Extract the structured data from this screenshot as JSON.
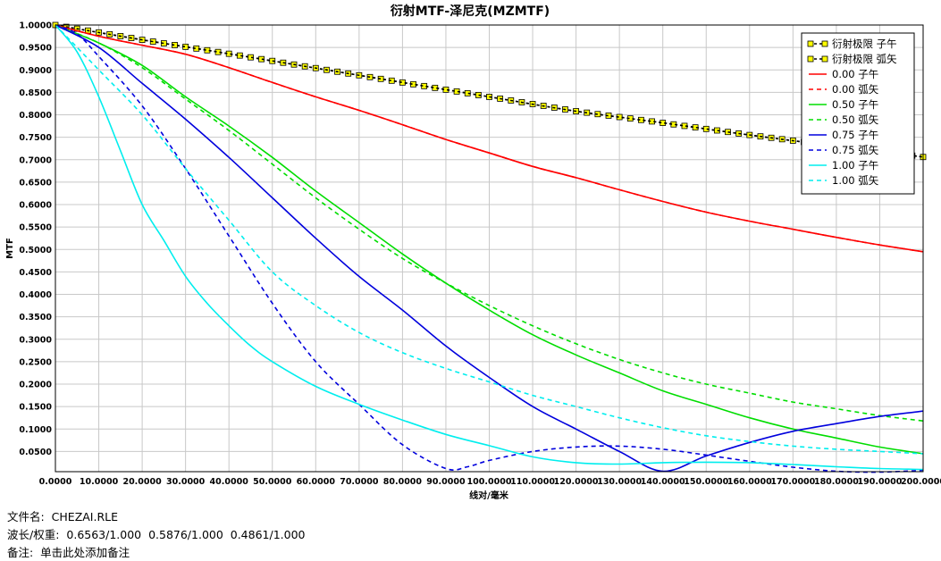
{
  "chart_data": {
    "type": "line",
    "title": "衍射MTF-泽尼克(MZMTF)",
    "xlabel": "线对/毫米",
    "ylabel": "MTF",
    "xlim": [
      0,
      200
    ],
    "ylim": [
      0.005,
      1.0
    ],
    "grid": true,
    "legend_position": "top-right",
    "x_ticks": [
      0,
      10,
      20,
      30,
      40,
      50,
      60,
      70,
      80,
      90,
      100,
      110,
      120,
      130,
      140,
      150,
      160,
      170,
      180,
      190,
      200
    ],
    "x_tick_labels": [
      "0.0000",
      "10.0000",
      "20.0000",
      "30.0000",
      "40.0000",
      "50.0000",
      "60.0000",
      "70.0000",
      "80.0000",
      "90.0000",
      "100.0000",
      "110.0000",
      "120.0000",
      "130.0000",
      "140.0000",
      "150.0000",
      "160.0000",
      "170.0000",
      "180.0000",
      "190.0000",
      "200.0000"
    ],
    "y_ticks": [
      0.05,
      0.1,
      0.15,
      0.2,
      0.25,
      0.3,
      0.35,
      0.4,
      0.45,
      0.5,
      0.55,
      0.6,
      0.65,
      0.7,
      0.75,
      0.8,
      0.85,
      0.9,
      0.95,
      1.0
    ],
    "y_tick_labels": [
      "0.0500",
      "0.1000",
      "0.1500",
      "0.2000",
      "0.2500",
      "0.3000",
      "0.3500",
      "0.4000",
      "0.4500",
      "0.5000",
      "0.5500",
      "0.6000",
      "0.6500",
      "0.7000",
      "0.7500",
      "0.8000",
      "0.8500",
      "0.9000",
      "0.9500",
      "1.0000"
    ],
    "series": [
      {
        "name": "衍射极限 子午",
        "color": "#000000",
        "dash": "dotted",
        "marker": "square-yellow",
        "x": [
          0,
          20,
          40,
          60,
          80,
          100,
          120,
          140,
          160,
          180,
          200
        ],
        "y": [
          1.0,
          0.967,
          0.936,
          0.904,
          0.872,
          0.84,
          0.808,
          0.782,
          0.755,
          0.73,
          0.706
        ]
      },
      {
        "name": "衍射极限 弧矢",
        "color": "#000000",
        "dash": "dotted",
        "marker": "square-yellow",
        "x": [
          0,
          20,
          40,
          60,
          80,
          100,
          120,
          140,
          160,
          180,
          200
        ],
        "y": [
          1.0,
          0.967,
          0.936,
          0.904,
          0.872,
          0.84,
          0.808,
          0.782,
          0.755,
          0.73,
          0.706
        ]
      },
      {
        "name": "0.00 子午",
        "color": "#ff0000",
        "dash": "solid",
        "x": [
          0,
          10,
          20,
          30,
          40,
          50,
          60,
          70,
          80,
          90,
          100,
          110,
          120,
          130,
          140,
          150,
          160,
          170,
          180,
          190,
          200
        ],
        "y": [
          1.0,
          0.975,
          0.955,
          0.935,
          0.905,
          0.872,
          0.84,
          0.81,
          0.778,
          0.745,
          0.715,
          0.685,
          0.66,
          0.633,
          0.607,
          0.583,
          0.563,
          0.545,
          0.527,
          0.51,
          0.495
        ]
      },
      {
        "name": "0.00 弧矢",
        "color": "#ff0000",
        "dash": "dashed",
        "x": [
          0,
          10,
          20,
          30,
          40,
          50,
          60,
          70,
          80,
          90,
          100,
          110,
          120,
          130,
          140,
          150,
          160,
          170,
          180,
          190,
          200
        ],
        "y": [
          1.0,
          0.975,
          0.955,
          0.935,
          0.905,
          0.872,
          0.84,
          0.81,
          0.778,
          0.745,
          0.715,
          0.685,
          0.66,
          0.633,
          0.607,
          0.583,
          0.563,
          0.545,
          0.527,
          0.51,
          0.495
        ]
      },
      {
        "name": "0.50 子午",
        "color": "#00dd00",
        "dash": "solid",
        "x": [
          0,
          10,
          20,
          30,
          40,
          50,
          60,
          70,
          80,
          90,
          100,
          110,
          120,
          130,
          140,
          150,
          160,
          170,
          180,
          190,
          200
        ],
        "y": [
          1.0,
          0.96,
          0.91,
          0.84,
          0.775,
          0.705,
          0.63,
          0.56,
          0.49,
          0.425,
          0.365,
          0.31,
          0.265,
          0.225,
          0.185,
          0.155,
          0.125,
          0.1,
          0.08,
          0.06,
          0.045
        ]
      },
      {
        "name": "0.50 弧矢",
        "color": "#00dd00",
        "dash": "dashed",
        "x": [
          0,
          10,
          20,
          30,
          40,
          50,
          60,
          70,
          80,
          90,
          100,
          110,
          120,
          130,
          140,
          150,
          160,
          170,
          180,
          190,
          200
        ],
        "y": [
          1.0,
          0.96,
          0.905,
          0.835,
          0.765,
          0.69,
          0.615,
          0.545,
          0.48,
          0.425,
          0.375,
          0.33,
          0.29,
          0.255,
          0.225,
          0.2,
          0.18,
          0.16,
          0.145,
          0.13,
          0.118
        ]
      },
      {
        "name": "0.75 子午",
        "color": "#0000dd",
        "dash": "solid",
        "x": [
          0,
          10,
          20,
          30,
          40,
          50,
          60,
          70,
          80,
          90,
          100,
          110,
          120,
          130,
          140,
          150,
          160,
          170,
          180,
          190,
          200
        ],
        "y": [
          1.0,
          0.95,
          0.87,
          0.79,
          0.705,
          0.615,
          0.525,
          0.44,
          0.365,
          0.285,
          0.215,
          0.15,
          0.1,
          0.05,
          0.006,
          0.04,
          0.07,
          0.095,
          0.112,
          0.128,
          0.14
        ]
      },
      {
        "name": "0.75 弧矢",
        "color": "#0000dd",
        "dash": "dashed",
        "x": [
          0,
          5,
          10,
          20,
          30,
          40,
          50,
          60,
          70,
          80,
          90,
          95,
          100,
          110,
          120,
          130,
          140,
          150,
          160,
          170,
          180,
          190,
          200
        ],
        "y": [
          1.0,
          0.98,
          0.93,
          0.82,
          0.68,
          0.53,
          0.38,
          0.25,
          0.155,
          0.065,
          0.012,
          0.016,
          0.03,
          0.05,
          0.06,
          0.062,
          0.055,
          0.042,
          0.028,
          0.015,
          0.006,
          0.004,
          0.008
        ]
      },
      {
        "name": "1.00 子午",
        "color": "#00eeee",
        "dash": "solid",
        "x": [
          0,
          5,
          10,
          15,
          20,
          25,
          30,
          35,
          40,
          45,
          50,
          60,
          70,
          80,
          90,
          100,
          110,
          120,
          130,
          140,
          150,
          160,
          170,
          180,
          190,
          200
        ],
        "y": [
          1.0,
          0.94,
          0.84,
          0.72,
          0.6,
          0.52,
          0.44,
          0.38,
          0.33,
          0.285,
          0.25,
          0.195,
          0.155,
          0.12,
          0.088,
          0.063,
          0.038,
          0.025,
          0.022,
          0.025,
          0.026,
          0.025,
          0.021,
          0.016,
          0.012,
          0.01
        ]
      },
      {
        "name": "1.00 弧矢",
        "color": "#00eeee",
        "dash": "dashed",
        "x": [
          0,
          10,
          20,
          30,
          40,
          50,
          60,
          70,
          80,
          90,
          100,
          110,
          120,
          130,
          140,
          150,
          160,
          170,
          180,
          190,
          200
        ],
        "y": [
          1.0,
          0.9,
          0.8,
          0.68,
          0.565,
          0.45,
          0.375,
          0.315,
          0.27,
          0.235,
          0.205,
          0.175,
          0.15,
          0.125,
          0.103,
          0.085,
          0.072,
          0.062,
          0.055,
          0.05,
          0.045
        ]
      }
    ]
  },
  "footer": {
    "file_label": "文件名:",
    "file_value": "CHEZAI.RLE",
    "wave_label": "波长/权重:",
    "wave_value": "0.6563/1.000  0.5876/1.000  0.4861/1.000",
    "note_label": "备注:",
    "note_value": "单击此处添加备注"
  }
}
